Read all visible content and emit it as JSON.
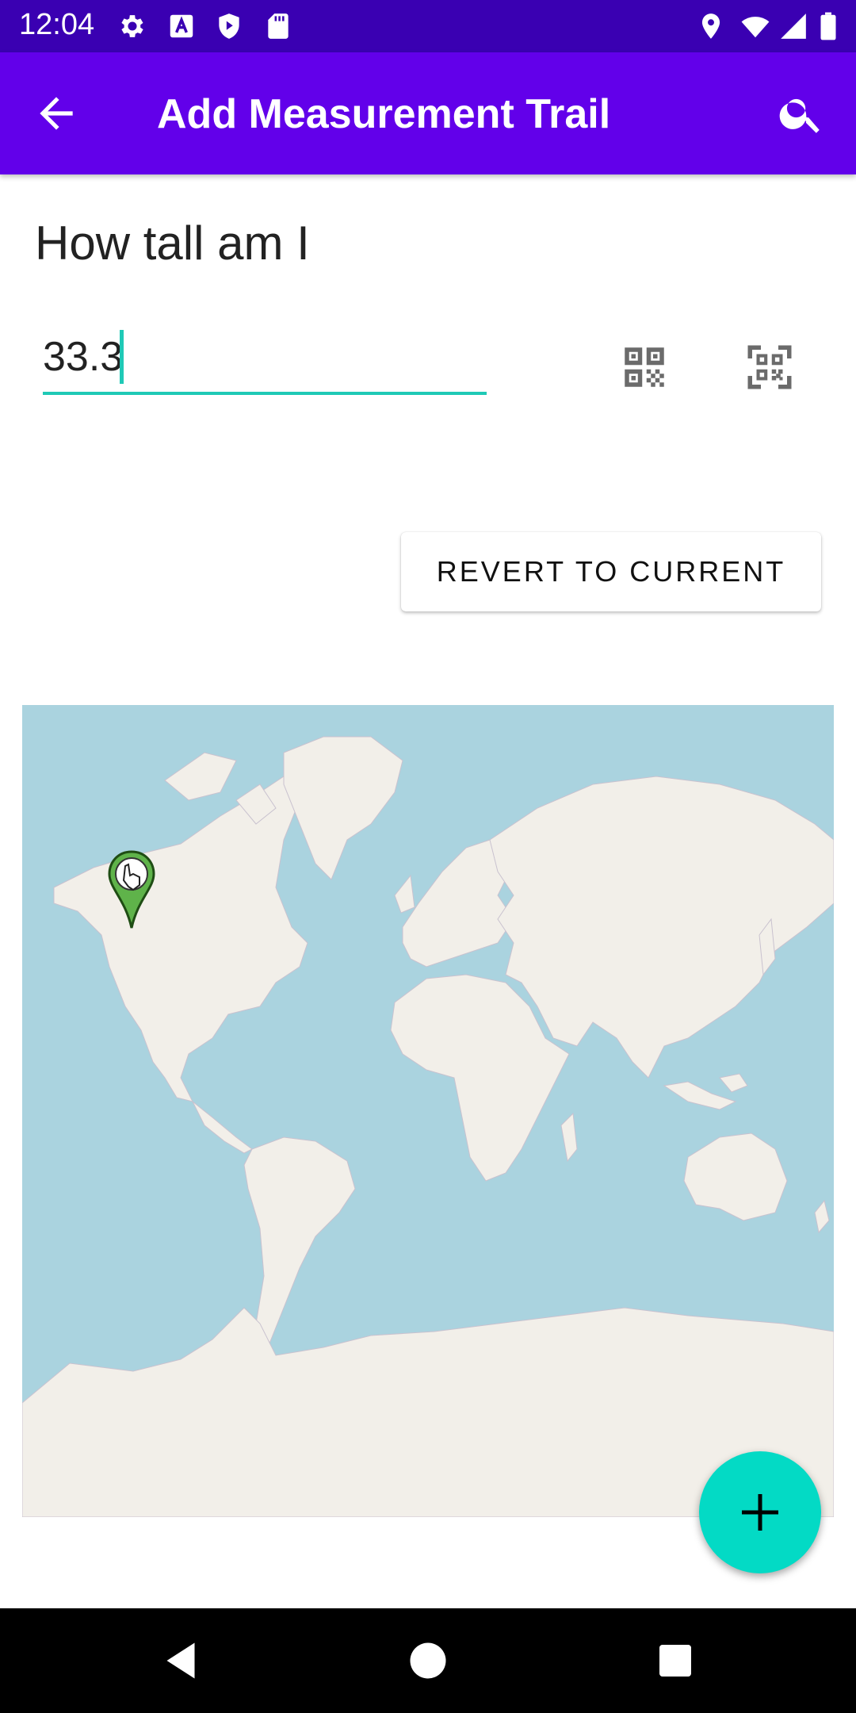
{
  "status_bar": {
    "time": "12:04",
    "icons": [
      "settings-icon",
      "font-icon",
      "play-protect-icon",
      "sd-card-icon",
      "location-icon",
      "wifi-icon",
      "signal-icon",
      "battery-icon"
    ],
    "background": "#3a00b2"
  },
  "app_bar": {
    "title": "Add Measurement Trail",
    "back_icon": "arrow-back-icon",
    "search_icon": "search-icon",
    "background": "#6200ea"
  },
  "form": {
    "trail_name": "How tall am I",
    "value": "33.3",
    "accent": "#1fc9b6",
    "qr_icons": [
      "qr-code-icon",
      "qr-scan-icon"
    ]
  },
  "revert_button": {
    "label": "REVERT TO CURRENT"
  },
  "map": {
    "marker_icon": "hand-pointer-marker-icon",
    "marker_color": "#5fb34a",
    "ocean_color": "#aad3df",
    "land_color": "#f2efe9"
  },
  "fab": {
    "icon": "plus-icon",
    "color": "#03dac5"
  },
  "nav_bar": {
    "icons": [
      "back-triangle-icon",
      "home-circle-icon",
      "recents-square-icon"
    ]
  }
}
